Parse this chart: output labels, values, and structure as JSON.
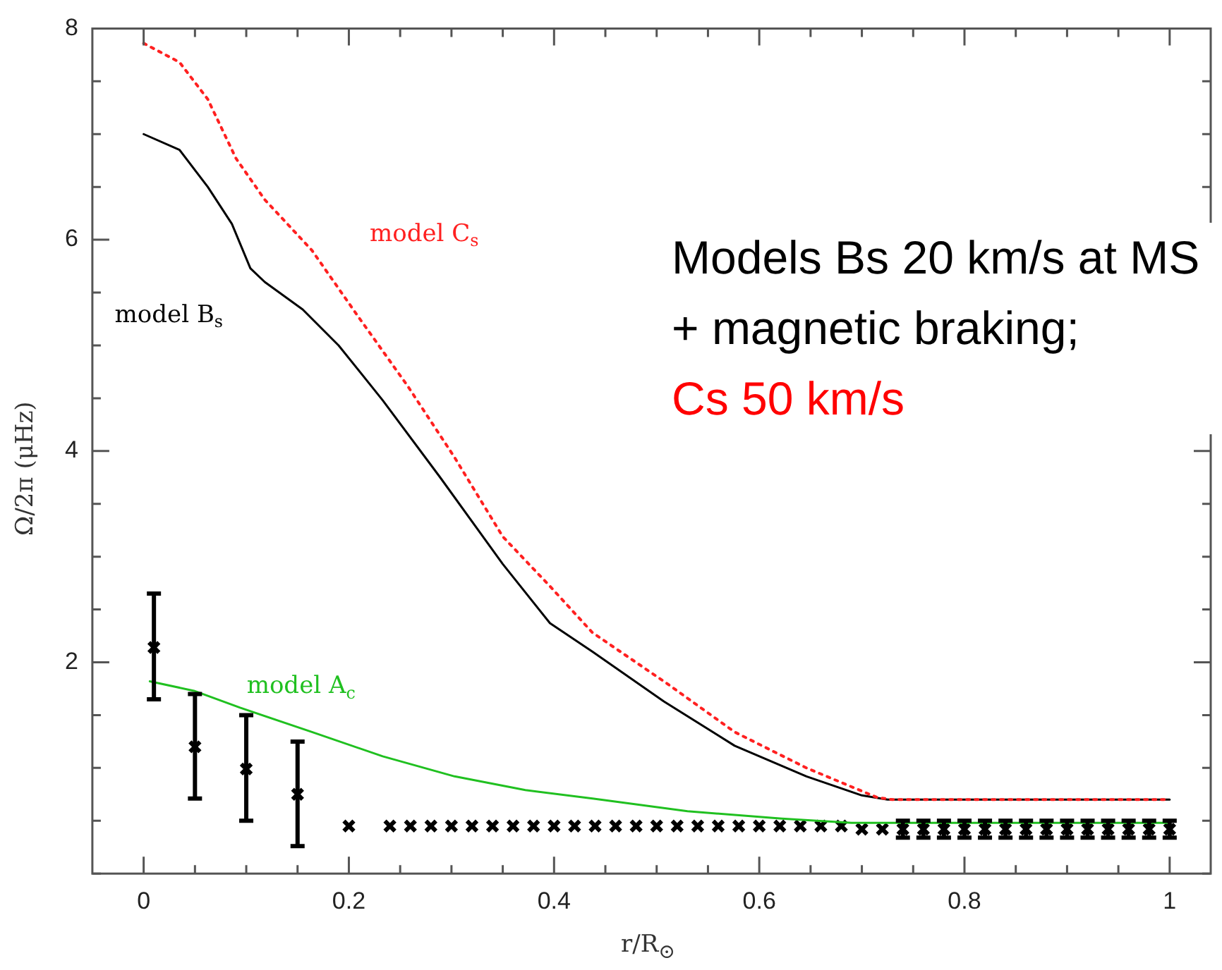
{
  "chart_data": {
    "type": "line",
    "xlabel": "r/R$_{⊙}$",
    "ylabel": "Ω/2π  (μHz)",
    "xlim": [
      -0.05,
      1.04
    ],
    "ylim": [
      0,
      8
    ],
    "xticks": [
      0,
      {
        "value": 0.05,
        "label": null
      },
      {
        "value": 0.1,
        "label": null
      },
      {
        "value": 0.15,
        "label": null
      },
      0.2,
      {
        "value": 0.25,
        "label": null
      },
      {
        "value": 0.3,
        "label": null
      },
      {
        "value": 0.35,
        "label": null
      },
      0.4,
      {
        "value": 0.45,
        "label": null
      },
      {
        "value": 0.5,
        "label": null
      },
      {
        "value": 0.55,
        "label": null
      },
      0.6,
      {
        "value": 0.65,
        "label": null
      },
      {
        "value": 0.7,
        "label": null
      },
      {
        "value": 0.75,
        "label": null
      },
      0.8,
      {
        "value": 0.85,
        "label": null
      },
      {
        "value": 0.9,
        "label": null
      },
      {
        "value": 0.95,
        "label": null
      },
      1
    ],
    "yticks": [
      {
        "value": 0,
        "label": null
      },
      {
        "value": 0.5,
        "label": null
      },
      {
        "value": 1,
        "label": null
      },
      {
        "value": 1.5,
        "label": null
      },
      2,
      {
        "value": 2.5,
        "label": null
      },
      {
        "value": 3,
        "label": null
      },
      {
        "value": 3.5,
        "label": null
      },
      4,
      {
        "value": 4.5,
        "label": null
      },
      {
        "value": 5,
        "label": null
      },
      {
        "value": 5.5,
        "label": null
      },
      6,
      {
        "value": 6.5,
        "label": null
      },
      {
        "value": 7,
        "label": null
      },
      {
        "value": 7.5,
        "label": null
      },
      8
    ],
    "grid": false,
    "legend": false,
    "series": [
      {
        "name": "model C$_{s}$",
        "line_style": "dotted",
        "marker": "none",
        "color": "#ff2020",
        "x": [
          0,
          0.035,
          0.0625,
          0.09,
          0.118,
          0.164,
          0.21,
          0.257,
          0.303,
          0.35,
          0.396,
          0.4375,
          0.507,
          0.576,
          0.646,
          0.715,
          0.73,
          1
        ],
        "values": [
          7.86,
          7.68,
          7.33,
          6.77,
          6.38,
          5.9,
          5.26,
          4.62,
          3.94,
          3.19,
          2.72,
          2.28,
          1.82,
          1.34,
          1.0,
          0.72,
          0.7,
          0.7
        ]
      },
      {
        "name": "model B$_{s}$",
        "line_style": "solid",
        "marker": "none",
        "color": "#000000",
        "x": [
          0,
          0.035,
          0.0625,
          0.086,
          0.104,
          0.118,
          0.155,
          0.19,
          0.233,
          0.289,
          0.35,
          0.396,
          0.4375,
          0.507,
          0.576,
          0.646,
          0.7,
          0.725,
          1
        ],
        "values": [
          7.0,
          6.85,
          6.5,
          6.15,
          5.73,
          5.6,
          5.34,
          5.0,
          4.48,
          3.75,
          2.93,
          2.37,
          2.1,
          1.63,
          1.21,
          0.92,
          0.74,
          0.7,
          0.7
        ]
      },
      {
        "name": "model A$_{c}$",
        "line_style": "solid",
        "marker": "none",
        "color": "#20c020",
        "x": [
          0.006,
          0.049,
          0.094,
          0.164,
          0.233,
          0.303,
          0.372,
          0.4375,
          0.53,
          0.622,
          0.69,
          1
        ],
        "values": [
          1.82,
          1.73,
          1.57,
          1.34,
          1.11,
          0.92,
          0.79,
          0.71,
          0.59,
          0.52,
          0.48,
          0.48
        ]
      },
      {
        "type": "scatter",
        "marker": "cross",
        "color": "#000000",
        "x": [
          0.01,
          0.05,
          0.1,
          0.15,
          0.2,
          0.24,
          0.26,
          0.28,
          0.3,
          0.32,
          0.34,
          0.36,
          0.38,
          0.4,
          0.42,
          0.44,
          0.46,
          0.48,
          0.5,
          0.52,
          0.54,
          0.56,
          0.58,
          0.6,
          0.62,
          0.64,
          0.66,
          0.68,
          0.7,
          0.72,
          0.74,
          0.76,
          0.78,
          0.8,
          0.82,
          0.84,
          0.86,
          0.88,
          0.9,
          0.92,
          0.94,
          0.96,
          0.98,
          1.0
        ],
        "values": [
          2.14,
          1.2,
          0.99,
          0.75,
          0.45,
          0.45,
          0.45,
          0.45,
          0.45,
          0.45,
          0.45,
          0.45,
          0.45,
          0.45,
          0.45,
          0.45,
          0.45,
          0.45,
          0.45,
          0.45,
          0.45,
          0.45,
          0.45,
          0.45,
          0.45,
          0.45,
          0.45,
          0.45,
          0.42,
          0.42,
          0.42,
          0.42,
          0.42,
          0.42,
          0.42,
          0.42,
          0.42,
          0.42,
          0.42,
          0.42,
          0.42,
          0.42,
          0.42,
          0.42
        ],
        "errors": [
          [
            1.65,
            2.65
          ],
          [
            0.71,
            1.7
          ],
          [
            0.5,
            1.5
          ],
          [
            0.26,
            1.25
          ],
          null,
          null,
          null,
          null,
          null,
          null,
          null,
          null,
          null,
          null,
          null,
          null,
          null,
          null,
          null,
          null,
          null,
          null,
          null,
          null,
          null,
          null,
          null,
          null,
          null,
          null,
          0.08,
          0.08,
          0.08,
          0.08,
          0.08,
          0.08,
          0.08,
          0.08,
          0.08,
          0.08,
          0.08,
          0.08,
          0.08,
          0.08
        ]
      }
    ],
    "annotations": [
      "Models Bs 20 km/s at MS + magnetic braking;",
      "Cs 50 km/s"
    ]
  }
}
